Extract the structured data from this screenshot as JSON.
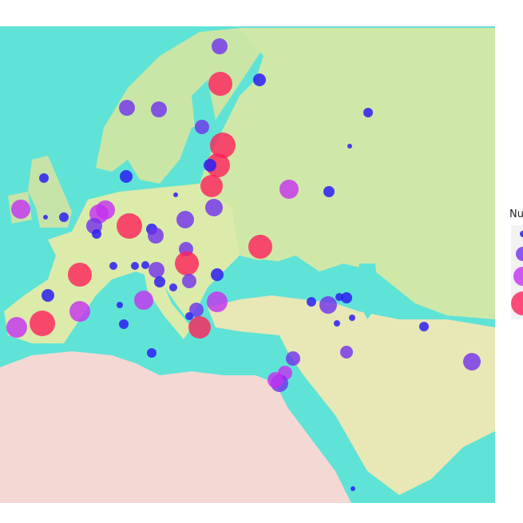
{
  "legend": {
    "title": "Nu"
  }
}
